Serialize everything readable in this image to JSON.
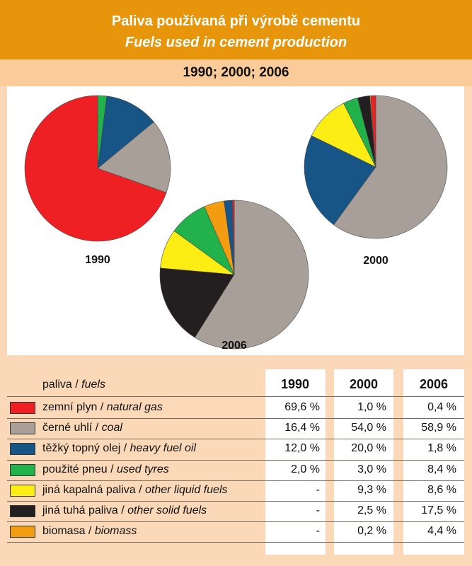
{
  "title": {
    "line1": "Paliva používaná při výrobě cementu",
    "line2": "Fuels used in cement production"
  },
  "years_label": "1990; 2000; 2006",
  "chart_data": {
    "type": "pie",
    "categories": [
      "natural gas",
      "coal",
      "heavy fuel oil",
      "used tyres",
      "other liquid fuels",
      "other solid fuels",
      "biomass"
    ],
    "colors": [
      "#ef2024",
      "#a79f98",
      "#175586",
      "#22b24b",
      "#fcee14",
      "#231f20",
      "#f29c12"
    ],
    "series": [
      {
        "name": "1990",
        "values": [
          69.6,
          16.4,
          12.0,
          2.0,
          0,
          0,
          0
        ]
      },
      {
        "name": "2000",
        "values": [
          1.0,
          54.0,
          20.0,
          3.0,
          9.3,
          2.5,
          0.2
        ]
      },
      {
        "name": "2006",
        "values": [
          0.4,
          58.9,
          1.8,
          8.4,
          8.6,
          17.5,
          4.4
        ]
      }
    ]
  },
  "table": {
    "header_cz": "paliva",
    "header_en": "fuels",
    "years": [
      "1990",
      "2000",
      "2006"
    ],
    "rows": [
      {
        "cz": "zemní plyn",
        "en": "natural gas",
        "color": "#ef2024",
        "values": [
          "69,6 %",
          "1,0 %",
          "0,4 %"
        ]
      },
      {
        "cz": "černé uhlí",
        "en": "coal",
        "color": "#a79f98",
        "values": [
          "16,4 %",
          "54,0 %",
          "58,9 %"
        ]
      },
      {
        "cz": "těžký topný olej",
        "en": "heavy fuel oil",
        "color": "#175586",
        "values": [
          "12,0 %",
          "20,0 %",
          "1,8 %"
        ]
      },
      {
        "cz": "použité pneu",
        "en": "used tyres",
        "color": "#22b24b",
        "values": [
          "2,0 %",
          "3,0 %",
          "8,4 %"
        ]
      },
      {
        "cz": "jiná kapalná paliva",
        "en": "other liquid fuels",
        "color": "#fcee14",
        "values": [
          "-",
          "9,3 %",
          "8,6 %"
        ]
      },
      {
        "cz": "jiná tuhá paliva",
        "en": "other solid fuels",
        "color": "#231f20",
        "values": [
          "-",
          "2,5 %",
          "17,5 %"
        ]
      },
      {
        "cz": "biomasa",
        "en": "biomass",
        "color": "#f29c12",
        "values": [
          "-",
          "0,2 %",
          "4,4 %"
        ]
      }
    ]
  }
}
